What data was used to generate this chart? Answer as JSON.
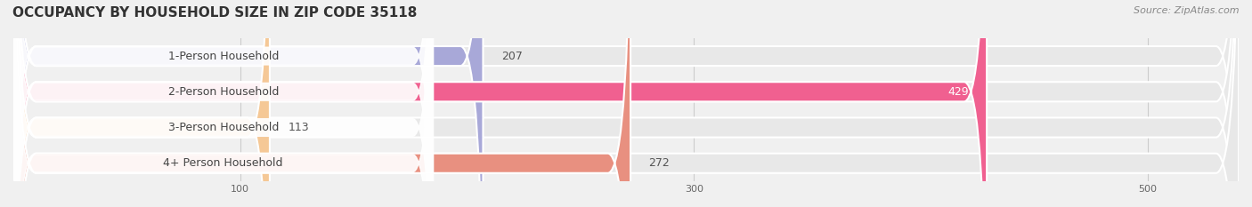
{
  "title": "OCCUPANCY BY HOUSEHOLD SIZE IN ZIP CODE 35118",
  "source": "Source: ZipAtlas.com",
  "categories": [
    "1-Person Household",
    "2-Person Household",
    "3-Person Household",
    "4+ Person Household"
  ],
  "values": [
    207,
    429,
    113,
    272
  ],
  "bar_colors": [
    "#a8a8d8",
    "#f06090",
    "#f5c896",
    "#e89080"
  ],
  "label_colors": [
    "#333333",
    "#ffffff",
    "#333333",
    "#333333"
  ],
  "xlim": [
    0,
    540
  ],
  "xticks": [
    100,
    300,
    500
  ],
  "background_color": "#f0f0f0",
  "bar_background_color": "#e8e8e8",
  "title_fontsize": 11,
  "source_fontsize": 8,
  "label_fontsize": 9,
  "value_fontsize": 9
}
